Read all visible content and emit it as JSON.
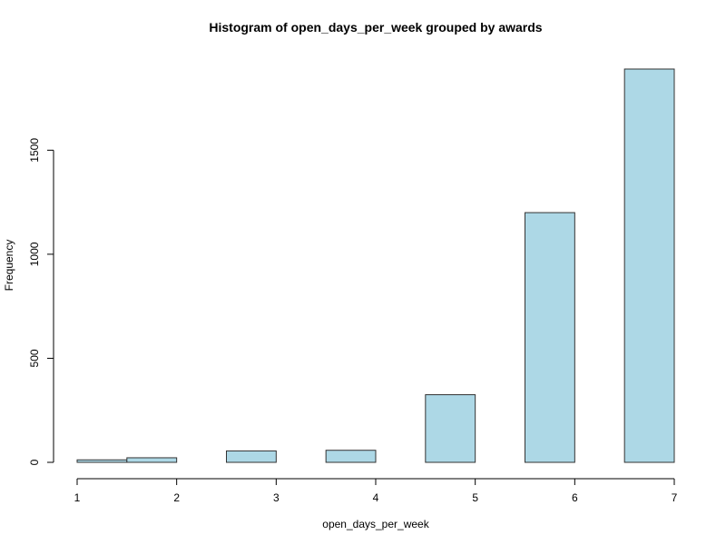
{
  "chart_data": {
    "type": "bar",
    "title": "Histogram of open_days_per_week grouped by awards",
    "xlabel": "open_days_per_week",
    "ylabel": "Frequency",
    "bin_width": 0.5,
    "bins": [
      {
        "start": 1.0,
        "end": 1.5,
        "value": 12
      },
      {
        "start": 1.5,
        "end": 2.0,
        "value": 22
      },
      {
        "start": 2.0,
        "end": 2.5,
        "value": 0
      },
      {
        "start": 2.5,
        "end": 3.0,
        "value": 55
      },
      {
        "start": 3.0,
        "end": 3.5,
        "value": 0
      },
      {
        "start": 3.5,
        "end": 4.0,
        "value": 58
      },
      {
        "start": 4.0,
        "end": 4.5,
        "value": 0
      },
      {
        "start": 4.5,
        "end": 5.0,
        "value": 325
      },
      {
        "start": 5.0,
        "end": 5.5,
        "value": 0
      },
      {
        "start": 5.5,
        "end": 6.0,
        "value": 1200
      },
      {
        "start": 6.0,
        "end": 6.5,
        "value": 0
      },
      {
        "start": 6.5,
        "end": 7.0,
        "value": 1890
      }
    ],
    "xlim": [
      1,
      7
    ],
    "ylim": [
      0,
      1890
    ],
    "x_ticks": [
      1,
      2,
      3,
      4,
      5,
      6,
      7
    ],
    "y_ticks": [
      0,
      500,
      1000,
      1500
    ],
    "grid": false,
    "legend": "none",
    "colors": {
      "bar_fill": "#add8e6",
      "bar_stroke": "#333333"
    }
  }
}
